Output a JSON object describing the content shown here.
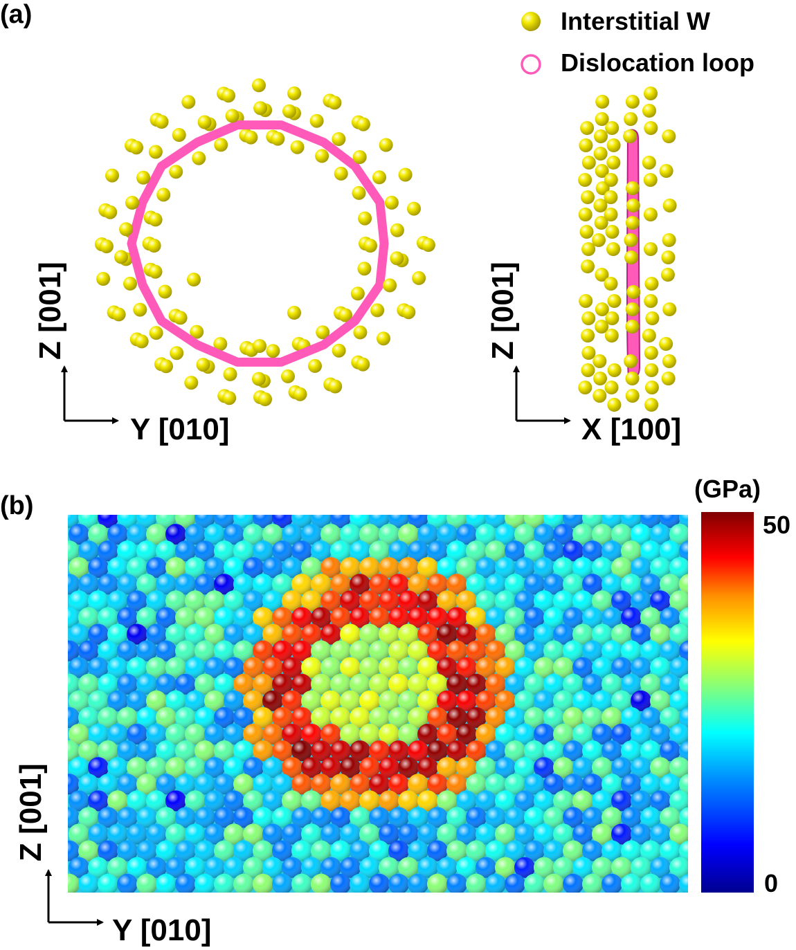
{
  "panel_a": {
    "label": "(a)",
    "legend": {
      "atom_label": "Interstitial W",
      "loop_label": "Dislocation loop"
    },
    "left_view": {
      "vertical_axis": "Z [001]",
      "horizontal_axis": "Y [010]"
    },
    "right_view": {
      "vertical_axis": "Z [001]",
      "horizontal_axis": "X [100]"
    }
  },
  "panel_b": {
    "label": "(b)",
    "vertical_axis": "Z [001]",
    "horizontal_axis": "Y [010]",
    "colorbar": {
      "unit": "(GPa)",
      "max_label": "50",
      "min_label": "0",
      "min": 0,
      "max": 50
    }
  },
  "colors": {
    "atom": "#f2e600",
    "loop": "#ff5ab9",
    "colormap": [
      "#00008f",
      "#0000ff",
      "#008fff",
      "#00ffff",
      "#8fff70",
      "#ffff00",
      "#ff8f00",
      "#ff0000",
      "#800000"
    ]
  }
}
